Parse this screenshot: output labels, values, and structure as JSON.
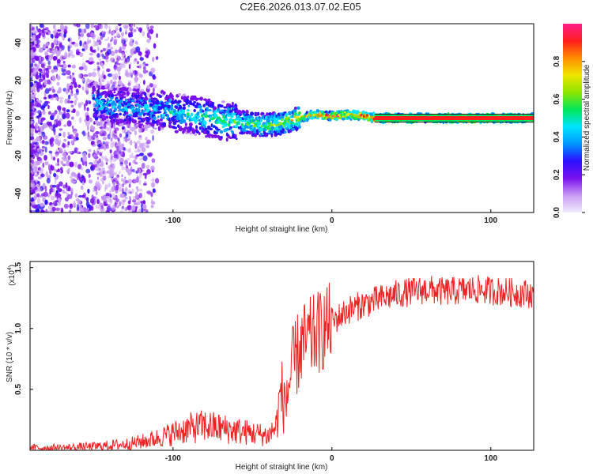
{
  "title": "C2E6.2026.013.07.02.E05",
  "chart_data": [
    {
      "type": "heatmap",
      "panel": "top",
      "xlabel": "Height of straight line (km)",
      "ylabel": "Frequency (Hz)",
      "xlim": [
        -190,
        127
      ],
      "ylim": [
        -50,
        50
      ],
      "xticks": [
        -100,
        0,
        100
      ],
      "yticks": [
        -40,
        -20,
        0,
        20,
        40
      ],
      "colorbar": {
        "label": "Normalized spectral amplitude",
        "range": [
          0.0,
          1.0
        ],
        "ticks": [
          0.0,
          0.2,
          0.4,
          0.6,
          0.8
        ],
        "colors": [
          "#f2ecff",
          "#c89cf2",
          "#7a10ee",
          "#2a10ff",
          "#0096ff",
          "#00e6ff",
          "#00e65a",
          "#8ce600",
          "#f0e600",
          "#ff8c00",
          "#ff1e1e",
          "#ff1e8c"
        ]
      },
      "ridge": [
        {
          "x": -145,
          "y": 7,
          "amp": 0.42
        },
        {
          "x": -130,
          "y": 6,
          "amp": 0.4
        },
        {
          "x": -115,
          "y": 5,
          "amp": 0.42
        },
        {
          "x": -100,
          "y": 3,
          "amp": 0.45
        },
        {
          "x": -90,
          "y": 2,
          "amp": 0.48
        },
        {
          "x": -80,
          "y": 0,
          "amp": 0.5
        },
        {
          "x": -70,
          "y": -1,
          "amp": 0.52
        },
        {
          "x": -60,
          "y": -2,
          "amp": 0.55
        },
        {
          "x": -50,
          "y": -3,
          "amp": 0.58
        },
        {
          "x": -40,
          "y": -4,
          "amp": 0.62
        },
        {
          "x": -30,
          "y": -2,
          "amp": 0.66
        },
        {
          "x": -20,
          "y": 0,
          "amp": 0.72
        },
        {
          "x": -10,
          "y": 2,
          "amp": 0.8
        },
        {
          "x": 0,
          "y": 1,
          "amp": 0.86
        },
        {
          "x": 10,
          "y": 2,
          "amp": 0.88
        },
        {
          "x": 20,
          "y": 1,
          "amp": 0.9
        },
        {
          "x": 27,
          "y": 0,
          "amp": 0.92
        },
        {
          "x": 127,
          "y": 0,
          "amp": 0.95
        }
      ]
    },
    {
      "type": "line",
      "panel": "bottom",
      "xlabel": "Height of straight line (km)",
      "ylabel": "SNR (10 * v/v)",
      "yscale_label": "(x10",
      "yscale_exp": "4",
      "yscale_close": ")",
      "xlim": [
        -190,
        127
      ],
      "ylim": [
        0,
        1.55
      ],
      "xticks": [
        -100,
        0,
        100
      ],
      "yticks": [
        0.5,
        1.0,
        1.5
      ],
      "color": "#ee2222",
      "series": [
        {
          "name": "SNR",
          "x": [
            -190,
            -170,
            -150,
            -130,
            -120,
            -110,
            -100,
            -90,
            -80,
            -70,
            -60,
            -50,
            -40,
            -35,
            -32,
            -30,
            -27,
            -24,
            -20,
            -15,
            -10,
            -5,
            0,
            5,
            10,
            20,
            30,
            40,
            50,
            60,
            70,
            80,
            90,
            100,
            110,
            120,
            127
          ],
          "y": [
            0.02,
            0.02,
            0.03,
            0.05,
            0.07,
            0.1,
            0.14,
            0.18,
            0.2,
            0.18,
            0.16,
            0.14,
            0.12,
            0.2,
            0.5,
            0.35,
            0.55,
            0.7,
            0.85,
            0.9,
            0.95,
            1.0,
            1.05,
            1.1,
            1.15,
            1.2,
            1.24,
            1.28,
            1.3,
            1.32,
            1.3,
            1.31,
            1.32,
            1.31,
            1.3,
            1.29,
            1.28
          ]
        }
      ]
    }
  ]
}
